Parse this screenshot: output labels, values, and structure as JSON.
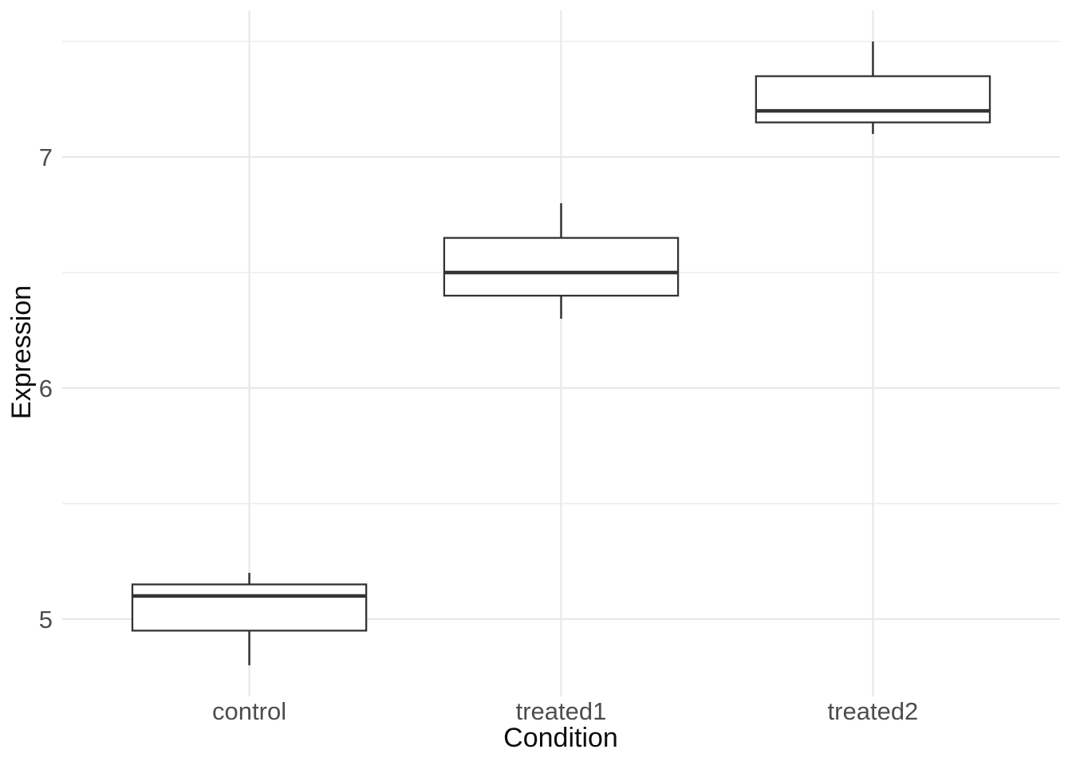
{
  "chart_data": {
    "type": "boxplot",
    "title": "",
    "xlabel": "Condition",
    "ylabel": "Expression",
    "categories": [
      "control",
      "treated1",
      "treated2"
    ],
    "series": [
      {
        "name": "control",
        "whisker_low": 4.8,
        "q1": 4.95,
        "median": 5.1,
        "q3": 5.15,
        "whisker_high": 5.2
      },
      {
        "name": "treated1",
        "whisker_low": 6.3,
        "q1": 6.4,
        "median": 6.5,
        "q3": 6.65,
        "whisker_high": 6.8
      },
      {
        "name": "treated2",
        "whisker_low": 7.1,
        "q1": 7.15,
        "median": 7.2,
        "q3": 7.35,
        "whisker_high": 7.5
      }
    ],
    "y_ticks": [
      5,
      6,
      7
    ],
    "y_tick_labels": [
      "5",
      "6",
      "7"
    ],
    "y_minor_ticks": [
      5.5,
      6.5,
      7.5
    ],
    "ylim": [
      4.665,
      7.635
    ],
    "legend_position": "none",
    "grid": {
      "major": true,
      "minor": true,
      "vertical_at_categories": true
    },
    "colors": {
      "background": "#ffffff",
      "box_stroke": "#333333",
      "box_fill": "#ffffff",
      "grid_major": "#e8e8e8",
      "grid_minor": "#f0f0f0",
      "tick_label": "#4d4d4d",
      "axis_title": "#0d0d0d"
    }
  }
}
